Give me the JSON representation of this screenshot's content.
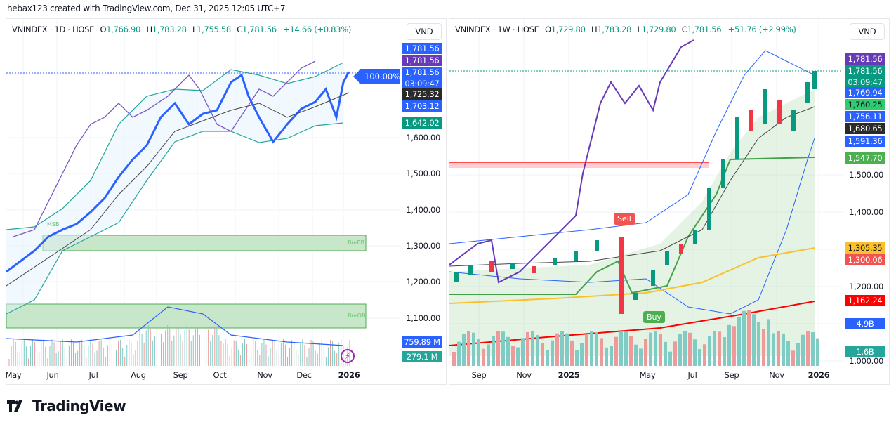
{
  "credit": "hebax123 created with TradingView.com, Dec 31, 2025 12:05 UTC+7",
  "brand": "TradingView",
  "left_chart": {
    "symbol": "VNINDEX · 1D · HOSE",
    "open_label": "O",
    "open": "1,766.90",
    "high_label": "H",
    "high": "1,783.28",
    "low_label": "L",
    "low": "1,755.58",
    "close_label": "C",
    "close": "1,781.56",
    "change": "+14.66 (+0.83%)",
    "currency": "VND",
    "percent_badge": "100.00%",
    "zone_labels": [
      "MSB",
      "Bu-BB",
      "Bu-OB"
    ],
    "price_ticks": [
      "1,600.00",
      "1,500.00",
      "1,400.00",
      "1,300.00",
      "1,200.00",
      "1,100.00"
    ],
    "price_tags": [
      {
        "text": "1,781.56",
        "color": "#2962ff"
      },
      {
        "text": "1,781.56",
        "color": "#673ab7"
      },
      {
        "text": "1,781.56",
        "sub": "03:09:47",
        "color": "#2962ff"
      },
      {
        "text": "1,725.32",
        "color": "#2a2a2a"
      },
      {
        "text": "1,703.12",
        "color": "#2962ff"
      },
      {
        "text": "1,642.02",
        "color": "#089981"
      },
      {
        "text": "759.89 M",
        "color": "#2962ff"
      },
      {
        "text": "279.1 M",
        "color": "#26a69a"
      }
    ],
    "x_labels": [
      "May",
      "Jun",
      "Jul",
      "Aug",
      "Sep",
      "Oct",
      "Nov",
      "Dec",
      "2026"
    ]
  },
  "right_chart": {
    "symbol": "VNINDEX · 1W · HOSE",
    "open_label": "O",
    "open": "1,729.80",
    "high_label": "H",
    "high": "1,783.28",
    "low_label": "L",
    "low": "1,729.80",
    "close_label": "C",
    "close": "1,781.56",
    "change": "+51.76 (+2.99%)",
    "currency": "VND",
    "signals": {
      "sell": "Sell",
      "buy": "Buy"
    },
    "price_ticks": [
      "1,500.00",
      "1,400.00",
      "1,200.00",
      "1,000.00"
    ],
    "price_tags": [
      {
        "text": "1,781.56",
        "color": "#673ab7"
      },
      {
        "text": "1,781.56",
        "sub": "03:09:47",
        "color": "#089981"
      },
      {
        "text": "1,769.94",
        "color": "#2962ff"
      },
      {
        "text": "1,760.25",
        "color": "#2ecc71",
        "dark": true
      },
      {
        "text": "1,756.11",
        "color": "#2962ff"
      },
      {
        "text": "1,680.65",
        "color": "#2a2a2a"
      },
      {
        "text": "1,591.36",
        "color": "#2962ff"
      },
      {
        "text": "1,547.70",
        "color": "#4caf50"
      },
      {
        "text": "1,305.35",
        "color": "#fbc02d",
        "dark": true
      },
      {
        "text": "1,300.06",
        "color": "#f05350"
      },
      {
        "text": "1,162.24",
        "color": "#ff0000"
      },
      {
        "text": "4.9B",
        "color": "#2962ff"
      },
      {
        "text": "1.6B",
        "color": "#26a69a"
      }
    ],
    "x_labels": [
      "Sep",
      "Nov",
      "2025",
      "May",
      "Jul",
      "Sep",
      "Nov",
      "2026"
    ]
  }
}
